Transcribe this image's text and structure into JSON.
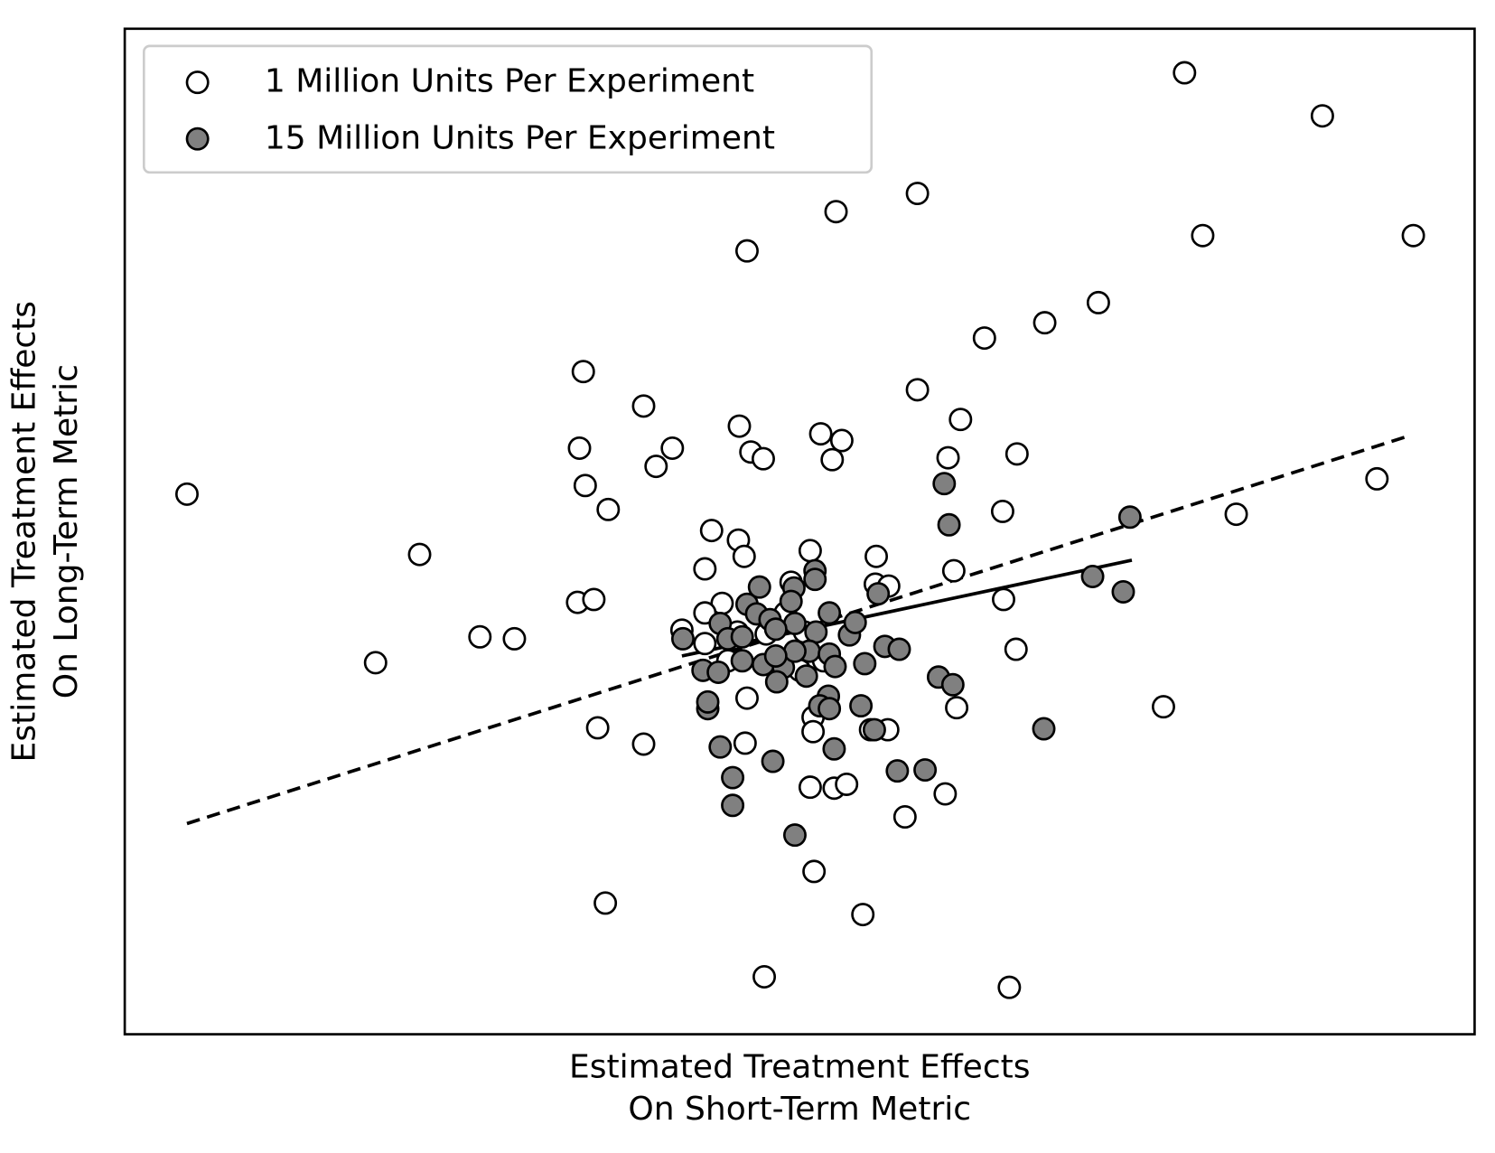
{
  "chart_data": {
    "type": "scatter",
    "xlabel": "Estimated Treatment Effects\nOn Short-Term Metric",
    "ylabel": "Estimated Treatment Effects\nOn Long-Term Metric",
    "xlim": [
      0,
      1410
    ],
    "ylim": [
      0,
      1050
    ],
    "legend": "upper left",
    "series": [
      {
        "name": "1 Million Units Per Experiment",
        "color": "#ffffff",
        "x": [
          1107,
          1251,
          828,
          743,
          650,
          1126,
          1346,
          1017,
          961,
          898,
          479,
          828,
          542,
          873,
          642,
          727,
          749,
          475,
          572,
          654,
          667,
          739,
          860,
          932,
          555,
          65,
          481,
          505,
          1308,
          917,
          1161,
          613,
          641,
          647,
          716,
          785,
          308,
          606,
          866,
          784,
          798,
          696,
          473,
          490,
          918,
          624,
          606,
          582,
          371,
          407,
          262,
          931,
          650,
          869,
          1085,
          719,
          494,
          719,
          779,
          797,
          542,
          648,
          716,
          741,
          754,
          857,
          815,
          720,
          502,
          771,
          668,
          924,
          606,
          640,
          670,
          690,
          705,
          730,
          630,
          710
        ],
        "values": [
          1004,
          959,
          878,
          859,
          818,
          834,
          834,
          764,
          743,
          727,
          692,
          673,
          656,
          642,
          635,
          627,
          620,
          612,
          612,
          608,
          601,
          600,
          602,
          606,
          593,
          564,
          573,
          548,
          580,
          546,
          543,
          526,
          516,
          499,
          505,
          499,
          501,
          486,
          484,
          470,
          468,
          472,
          451,
          454,
          454,
          450,
          440,
          422,
          415,
          413,
          388,
          402,
          351,
          341,
          342,
          331,
          320,
          316,
          318,
          318,
          303,
          304,
          258,
          257,
          261,
          251,
          227,
          170,
          137,
          125,
          60,
          49,
          408,
          420,
          418,
          440,
          380,
          390,
          390,
          420
        ]
      },
      {
        "name": "15 Million Units Per Experiment",
        "color": "#808080",
        "x": [
          856,
          861,
          1050,
          721,
          721,
          663,
          699,
          787,
          650,
          696,
          1011,
          1043,
          736,
          622,
          660,
          674,
          700,
          583,
          630,
          645,
          680,
          722,
          757,
          763,
          794,
          809,
          604,
          620,
          645,
          667,
          688,
          715,
          736,
          742,
          773,
          681,
          712,
          850,
          865,
          735,
          726,
          736,
          769,
          609,
          609,
          783,
          960,
          622,
          741,
          677,
          807,
          836,
          635,
          635,
          700,
          700,
          680
        ],
        "values": [
          575,
          532,
          540,
          484,
          475,
          467,
          466,
          460,
          449,
          452,
          478,
          462,
          440,
          429,
          439,
          433,
          429,
          413,
          413,
          415,
          423,
          420,
          417,
          430,
          405,
          402,
          380,
          378,
          390,
          386,
          383,
          400,
          397,
          384,
          387,
          368,
          374,
          373,
          365,
          353,
          343,
          340,
          343,
          340,
          347,
          318,
          319,
          300,
          298,
          285,
          275,
          276,
          268,
          239,
          208,
          400,
          395
        ]
      }
    ],
    "lines": [
      {
        "style": "dashed",
        "x": [
          65,
          1342
        ],
        "values": [
          220,
          625
        ]
      },
      {
        "style": "solid",
        "x": [
          582,
          1052
        ],
        "values": [
          395,
          495
        ]
      }
    ]
  }
}
